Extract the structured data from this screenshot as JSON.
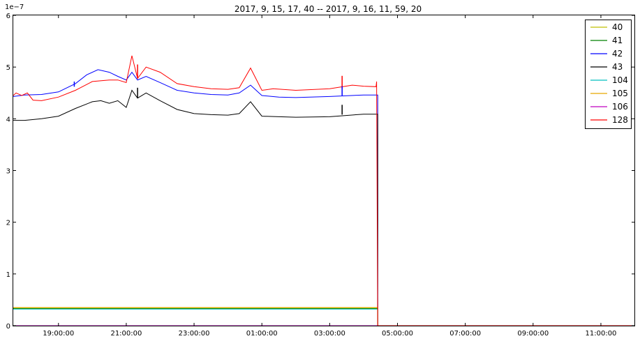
{
  "chart_data": {
    "type": "line",
    "title": "2017, 9, 15, 17, 40 -- 2017, 9, 16, 11, 59, 20",
    "y_offset_label": "1e−7",
    "xlim": [
      "2017-09-15 17:40:00",
      "2017-09-16 11:59:20"
    ],
    "ylim": [
      0,
      6
    ],
    "x_ticks": [
      {
        "t": "2017-09-15 19:00:00",
        "label": "19:00:00"
      },
      {
        "t": "2017-09-15 21:00:00",
        "label": "21:00:00"
      },
      {
        "t": "2017-09-15 23:00:00",
        "label": "23:00:00"
      },
      {
        "t": "2017-09-16 01:00:00",
        "label": "01:00:00"
      },
      {
        "t": "2017-09-16 03:00:00",
        "label": "03:00:00"
      },
      {
        "t": "2017-09-16 05:00:00",
        "label": "05:00:00"
      },
      {
        "t": "2017-09-16 07:00:00",
        "label": "07:00:00"
      },
      {
        "t": "2017-09-16 09:00:00",
        "label": "09:00:00"
      },
      {
        "t": "2017-09-16 11:00:00",
        "label": "11:00:00"
      }
    ],
    "y_ticks": [
      {
        "v": 0,
        "label": "0"
      },
      {
        "v": 1,
        "label": "1"
      },
      {
        "v": 2,
        "label": "2"
      },
      {
        "v": 3,
        "label": "3"
      },
      {
        "v": 4,
        "label": "4"
      },
      {
        "v": 5,
        "label": "5"
      },
      {
        "v": 6,
        "label": "6"
      }
    ],
    "legend_position": "top-right",
    "grid": false,
    "series": [
      {
        "name": "40",
        "color": "#bfbf00",
        "points": [
          [
            "2017-09-15 17:40:00",
            0.34
          ],
          [
            "2017-09-16 04:25:00",
            0.34
          ],
          [
            "2017-09-16 04:25:00",
            0
          ],
          [
            "2017-09-16 11:59:20",
            0
          ]
        ]
      },
      {
        "name": "41",
        "color": "#008000",
        "points": [
          [
            "2017-09-15 17:40:00",
            0.33
          ],
          [
            "2017-09-16 04:25:00",
            0.33
          ],
          [
            "2017-09-16 04:25:00",
            0
          ],
          [
            "2017-09-16 11:59:20",
            0
          ]
        ]
      },
      {
        "name": "42",
        "color": "#0000ff",
        "points": [
          [
            "2017-09-15 17:40:00",
            4.43
          ],
          [
            "2017-09-15 18:00:00",
            4.46
          ],
          [
            "2017-09-15 18:30:00",
            4.47
          ],
          [
            "2017-09-15 19:00:00",
            4.52
          ],
          [
            "2017-09-15 19:30:00",
            4.68
          ],
          [
            "2017-09-15 19:50:00",
            4.85
          ],
          [
            "2017-09-15 20:10:00",
            4.95
          ],
          [
            "2017-09-15 20:30:00",
            4.9
          ],
          [
            "2017-09-15 20:45:00",
            4.82
          ],
          [
            "2017-09-15 21:00:00",
            4.75
          ],
          [
            "2017-09-15 21:10:00",
            4.9
          ],
          [
            "2017-09-15 21:20:00",
            4.75
          ],
          [
            "2017-09-15 21:35:00",
            4.82
          ],
          [
            "2017-09-15 22:00:00",
            4.7
          ],
          [
            "2017-09-15 22:30:00",
            4.55
          ],
          [
            "2017-09-15 23:00:00",
            4.5
          ],
          [
            "2017-09-15 23:30:00",
            4.47
          ],
          [
            "2017-09-16 00:00:00",
            4.46
          ],
          [
            "2017-09-16 00:20:00",
            4.5
          ],
          [
            "2017-09-16 00:40:00",
            4.65
          ],
          [
            "2017-09-16 01:00:00",
            4.45
          ],
          [
            "2017-09-16 01:30:00",
            4.42
          ],
          [
            "2017-09-16 02:00:00",
            4.41
          ],
          [
            "2017-09-16 03:00:00",
            4.43
          ],
          [
            "2017-09-16 04:00:00",
            4.46
          ],
          [
            "2017-09-16 04:25:00",
            4.46
          ],
          [
            "2017-09-16 04:25:00",
            0
          ],
          [
            "2017-09-16 11:59:20",
            0
          ]
        ]
      },
      {
        "name": "43",
        "color": "#000000",
        "points": [
          [
            "2017-09-15 17:40:00",
            3.97
          ],
          [
            "2017-09-15 18:00:00",
            3.97
          ],
          [
            "2017-09-15 18:30:00",
            4.0
          ],
          [
            "2017-09-15 19:00:00",
            4.05
          ],
          [
            "2017-09-15 19:30:00",
            4.2
          ],
          [
            "2017-09-15 20:00:00",
            4.33
          ],
          [
            "2017-09-15 20:15:00",
            4.35
          ],
          [
            "2017-09-15 20:30:00",
            4.3
          ],
          [
            "2017-09-15 20:45:00",
            4.35
          ],
          [
            "2017-09-15 21:00:00",
            4.22
          ],
          [
            "2017-09-15 21:10:00",
            4.55
          ],
          [
            "2017-09-15 21:20:00",
            4.4
          ],
          [
            "2017-09-15 21:35:00",
            4.5
          ],
          [
            "2017-09-15 22:00:00",
            4.35
          ],
          [
            "2017-09-15 22:30:00",
            4.18
          ],
          [
            "2017-09-15 23:00:00",
            4.1
          ],
          [
            "2017-09-15 23:30:00",
            4.08
          ],
          [
            "2017-09-16 00:00:00",
            4.07
          ],
          [
            "2017-09-16 00:20:00",
            4.1
          ],
          [
            "2017-09-16 00:40:00",
            4.33
          ],
          [
            "2017-09-16 01:00:00",
            4.05
          ],
          [
            "2017-09-16 01:30:00",
            4.04
          ],
          [
            "2017-09-16 02:00:00",
            4.03
          ],
          [
            "2017-09-16 03:00:00",
            4.04
          ],
          [
            "2017-09-16 04:00:00",
            4.09
          ],
          [
            "2017-09-16 04:25:00",
            4.09
          ],
          [
            "2017-09-16 04:25:00",
            0
          ],
          [
            "2017-09-16 11:59:20",
            0
          ]
        ]
      },
      {
        "name": "104",
        "color": "#00bfbf",
        "points": [
          [
            "2017-09-15 17:40:00",
            0.32
          ],
          [
            "2017-09-16 04:25:00",
            0.32
          ],
          [
            "2017-09-16 04:25:00",
            0
          ],
          [
            "2017-09-16 11:59:20",
            0
          ]
        ]
      },
      {
        "name": "105",
        "color": "#e6a800",
        "points": [
          [
            "2017-09-15 17:40:00",
            0.35
          ],
          [
            "2017-09-16 04:25:00",
            0.35
          ],
          [
            "2017-09-16 04:25:00",
            0
          ],
          [
            "2017-09-16 11:59:20",
            0
          ]
        ]
      },
      {
        "name": "106",
        "color": "#bf00bf",
        "points": [
          [
            "2017-09-15 17:40:00",
            0.0
          ],
          [
            "2017-09-16 11:59:20",
            0.0
          ]
        ]
      },
      {
        "name": "128",
        "color": "#ff0000",
        "points": [
          [
            "2017-09-15 17:40:00",
            4.45
          ],
          [
            "2017-09-15 17:45:00",
            4.5
          ],
          [
            "2017-09-15 17:55:00",
            4.45
          ],
          [
            "2017-09-15 18:05:00",
            4.5
          ],
          [
            "2017-09-15 18:15:00",
            4.36
          ],
          [
            "2017-09-15 18:30:00",
            4.35
          ],
          [
            "2017-09-15 19:00:00",
            4.42
          ],
          [
            "2017-09-15 19:30:00",
            4.55
          ],
          [
            "2017-09-15 20:00:00",
            4.72
          ],
          [
            "2017-09-15 20:30:00",
            4.75
          ],
          [
            "2017-09-15 20:45:00",
            4.75
          ],
          [
            "2017-09-15 21:00:00",
            4.7
          ],
          [
            "2017-09-15 21:10:00",
            5.22
          ],
          [
            "2017-09-15 21:20:00",
            4.78
          ],
          [
            "2017-09-15 21:35:00",
            5.0
          ],
          [
            "2017-09-15 22:00:00",
            4.9
          ],
          [
            "2017-09-15 22:30:00",
            4.68
          ],
          [
            "2017-09-15 23:00:00",
            4.62
          ],
          [
            "2017-09-15 23:30:00",
            4.58
          ],
          [
            "2017-09-16 00:00:00",
            4.57
          ],
          [
            "2017-09-16 00:20:00",
            4.6
          ],
          [
            "2017-09-16 00:40:00",
            4.98
          ],
          [
            "2017-09-16 01:00:00",
            4.55
          ],
          [
            "2017-09-16 01:20:00",
            4.58
          ],
          [
            "2017-09-16 02:00:00",
            4.55
          ],
          [
            "2017-09-16 03:00:00",
            4.58
          ],
          [
            "2017-09-16 03:40:00",
            4.65
          ],
          [
            "2017-09-16 04:00:00",
            4.63
          ],
          [
            "2017-09-16 04:22:00",
            4.62
          ],
          [
            "2017-09-16 04:23:00",
            4.72
          ],
          [
            "2017-09-16 04:25:00",
            0
          ],
          [
            "2017-09-16 11:59:20",
            0
          ]
        ]
      }
    ],
    "spikes": [
      {
        "series": "128",
        "t": "2017-09-15 21:20:00",
        "from": 4.78,
        "to": 5.05
      },
      {
        "series": "43",
        "t": "2017-09-15 21:20:00",
        "from": 4.4,
        "to": 4.6
      },
      {
        "series": "128",
        "t": "2017-09-16 03:22:00",
        "from": 4.58,
        "to": 4.83
      },
      {
        "series": "42",
        "t": "2017-09-16 03:22:00",
        "from": 4.45,
        "to": 4.63
      },
      {
        "series": "43",
        "t": "2017-09-16 03:22:00",
        "from": 4.08,
        "to": 4.27
      },
      {
        "series": "42",
        "t": "2017-09-15 19:28:00",
        "from": 4.62,
        "to": 4.72
      }
    ]
  }
}
